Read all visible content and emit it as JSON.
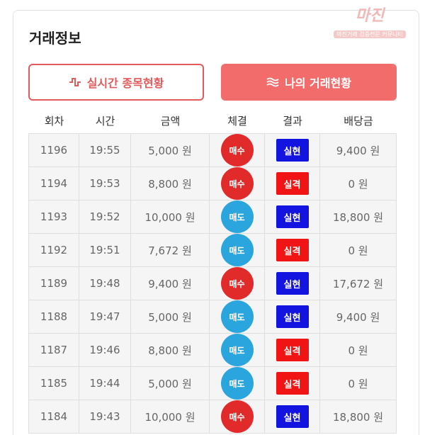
{
  "header": {
    "title": "거래정보",
    "logo": "마진",
    "logo_tagline": "마진거래 검증전문 커뮤니티"
  },
  "tabs": [
    {
      "label": "실시간 종목현황",
      "active": false
    },
    {
      "label": "나의 거래현황",
      "active": true
    }
  ],
  "table": {
    "columns": [
      "회차",
      "시간",
      "금액",
      "체결",
      "결과",
      "배당금"
    ],
    "rows": [
      {
        "round": "1196",
        "time": "19:55",
        "amount": "5,000 원",
        "trade": "매수",
        "trade_color": "#e12a2a",
        "result": "실현",
        "result_color": "#1414e0",
        "payout": "9,400 원"
      },
      {
        "round": "1194",
        "time": "19:53",
        "amount": "8,800 원",
        "trade": "매수",
        "trade_color": "#e12a2a",
        "result": "실격",
        "result_color": "#f01414",
        "payout": "0 원"
      },
      {
        "round": "1193",
        "time": "19:52",
        "amount": "10,000 원",
        "trade": "매도",
        "trade_color": "#2ba5de",
        "result": "실현",
        "result_color": "#1414e0",
        "payout": "18,800 원"
      },
      {
        "round": "1192",
        "time": "19:51",
        "amount": "7,672 원",
        "trade": "매도",
        "trade_color": "#2ba5de",
        "result": "실격",
        "result_color": "#f01414",
        "payout": "0 원"
      },
      {
        "round": "1189",
        "time": "19:48",
        "amount": "9,400 원",
        "trade": "매수",
        "trade_color": "#e12a2a",
        "result": "실현",
        "result_color": "#1414e0",
        "payout": "17,672 원"
      },
      {
        "round": "1188",
        "time": "19:47",
        "amount": "5,000 원",
        "trade": "매도",
        "trade_color": "#2ba5de",
        "result": "실현",
        "result_color": "#1414e0",
        "payout": "9,400 원"
      },
      {
        "round": "1187",
        "time": "19:46",
        "amount": "8,800 원",
        "trade": "매도",
        "trade_color": "#2ba5de",
        "result": "실격",
        "result_color": "#f01414",
        "payout": "0 원"
      },
      {
        "round": "1185",
        "time": "19:44",
        "amount": "5,000 원",
        "trade": "매도",
        "trade_color": "#2ba5de",
        "result": "실격",
        "result_color": "#f01414",
        "payout": "0 원"
      },
      {
        "round": "1184",
        "time": "19:43",
        "amount": "10,000 원",
        "trade": "매수",
        "trade_color": "#e12a2a",
        "result": "실현",
        "result_color": "#1414e0",
        "payout": "18,800 원"
      }
    ]
  }
}
